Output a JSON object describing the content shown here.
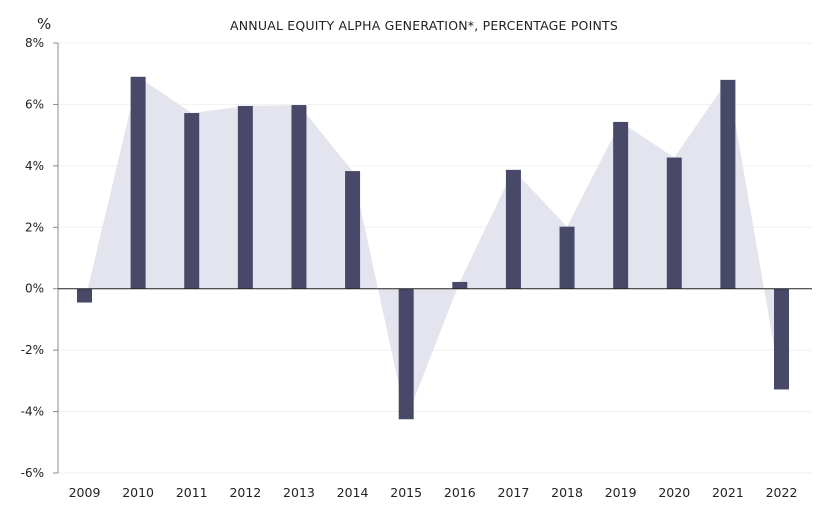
{
  "chart_data": {
    "type": "bar",
    "title": "ANNUAL EQUITY ALPHA GENERATION*, PERCENTAGE POINTS",
    "unit_label": "%",
    "xlabel": "",
    "ylabel": "%",
    "ylim": [
      -6,
      8
    ],
    "yticks": [
      8,
      6,
      4,
      2,
      0,
      -2,
      -4,
      -6
    ],
    "ytick_labels": [
      "8%",
      "6%",
      "4%",
      "2%",
      "0%",
      "-2%",
      "-4%",
      "-6%"
    ],
    "categories": [
      "2009",
      "2010",
      "2011",
      "2012",
      "2013",
      "2014",
      "2015",
      "2016",
      "2017",
      "2018",
      "2019",
      "2020",
      "2021",
      "2022"
    ],
    "values": [
      -0.45,
      6.9,
      5.72,
      5.95,
      5.98,
      3.83,
      -4.25,
      0.22,
      3.87,
      2.02,
      5.43,
      4.27,
      6.8,
      -3.28
    ],
    "grid": true,
    "legend": "none",
    "colors": {
      "bar": "#484868",
      "area": "#e4e4ef",
      "grid": "#f0f0f0",
      "axis": "#8c8c8c",
      "zero": "#222222",
      "text": "#222222"
    }
  }
}
